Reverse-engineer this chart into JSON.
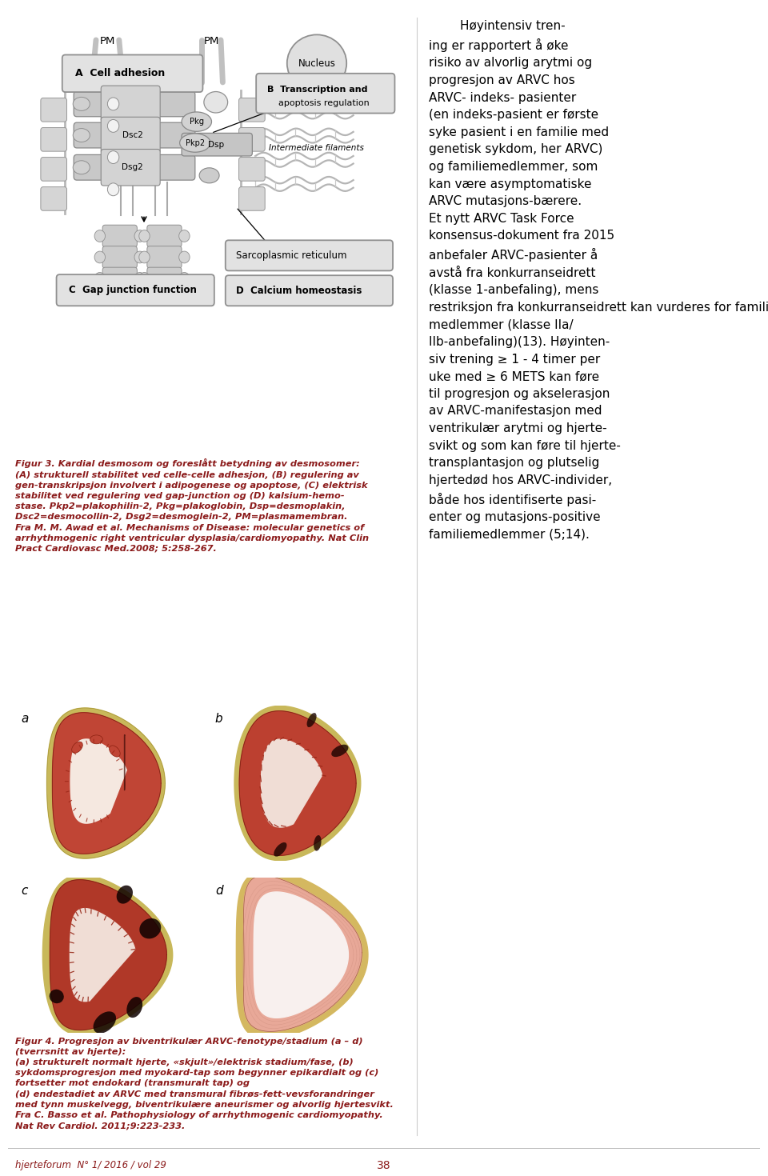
{
  "page_bg": "#ffffff",
  "fig3_caption": "Figur 3. Kardial desmosom og foreslått betydning av desmosomer:\n(A) strukturell stabilitet ved celle-celle adhesjon, (B) regulering av\ngen-transkripsjon involvert i adipogenese og apoptose, (C) elektrisk\nstabilitet ved regulering ved gap-junction og (D) kalsium-hemo-\nstase. Pkp2=plakophilin-2, Pkg=plakoglobin, Dsp=desmoplakin,\nDsc2=desmocollin-2, Dsg2=desmoglein-2, PM=plasmamembran.\nFra M. M. Awad et al. Mechanisms of Disease: molecular genetics of\narrhythmogenic right ventricular dysplasia/cardiomyopathy. Nat Clin\nPract Cardiovasc Med.2008; 5:258-267.",
  "fig4_caption": "Figur 4. Progresjon av biventrikulær ARVC-fenotype/stadium (a – d)\n(tverrsnitt av hjerte):\n(a) strukturelt normalt hjerte, «skjult»/elektrisk stadium/fase, (b)\nsykdomsprogresjon med myokard-tap som begynner epikardialt og (c)\nfortsetter mot endokard (transmuralt tap) og\n(d) endestadiet av ARVC med transmural fibrøs-fett-vevsforandringer\nmed tynn muskelvegg, biventrikulære aneurismer og alvorlig hjertesvikt.\nFra C. Basso et al. Pathophysiology of arrhythmogenic cardiomyopathy.\nNat Rev Cardiol. 2011;9:223-233.",
  "right_text": "        Høyintensiv tren-\ning er rapportert å øke\nrisiko av alvorlig arytmi og\nprogresjon av ARVC hos\nARVC- indeks- pasienter\n(en indeks-pasient er første\nsyke pasient i en familie med\ngenetisk sykdom, her ARVC)\nog familiemedlemmer, som\nkan være asymptomatiske\nARVC mutasjons-bærere.\nEt nytt ARVC Task Force\nkonsensus-dokument fra 2015\nanbefaler ARVC-pasienter å\navstå fra konkurranseidrett\n(klasse 1-anbefaling), mens\nrestriksjon fra konkurranseidrett kan vurderes for familie-\nmedlemmer (klasse IIa/\nIIb-anbefaling)(13). Høyinten-\nsiv trening ≥ 1 - 4 timer per\nuke med ≥ 6 METS kan føre\ntil progresjon og akselerasjon\nav ARVC-manifestasjon med\nventrikulær arytmi og hjerte-\nsvikt og som kan føre til hjerte-\ntransplantasjon og plutselig\nhjertedød hos ARVC-individer,\nbåde hos identifiserte pasi-\nenter og mutasjons-positive\nfamiliemedlemmer (5;14).",
  "footer_left": "hjerteforum  N° 1/ 2016 / vol 29",
  "footer_center": "38",
  "caption_color": "#8B1A1A",
  "text_color": "#000000",
  "box_fc": "#e2e2e2",
  "box_ec": "#909090",
  "diagram_box_A": "A  Cell adhesion",
  "diagram_box_B_line1": "B  Transcription and",
  "diagram_box_B_line2": "    apoptosis regulation",
  "diagram_box_C": "C  Gap junction function",
  "diagram_box_D": "D  Calcium homeostasis",
  "diagram_nucleus": "Nucleus",
  "diagram_SR": "Sarcoplasmic reticulum",
  "diagram_IF": "Intermediate filaments",
  "diagram_PM": "PM",
  "diagram_Pkg": "Pkg",
  "diagram_Pkp2": "Pkp2",
  "diagram_Dsc2": "Dsc2",
  "diagram_Dsg2": "Dsg2",
  "diagram_Dsp": "Dsp"
}
